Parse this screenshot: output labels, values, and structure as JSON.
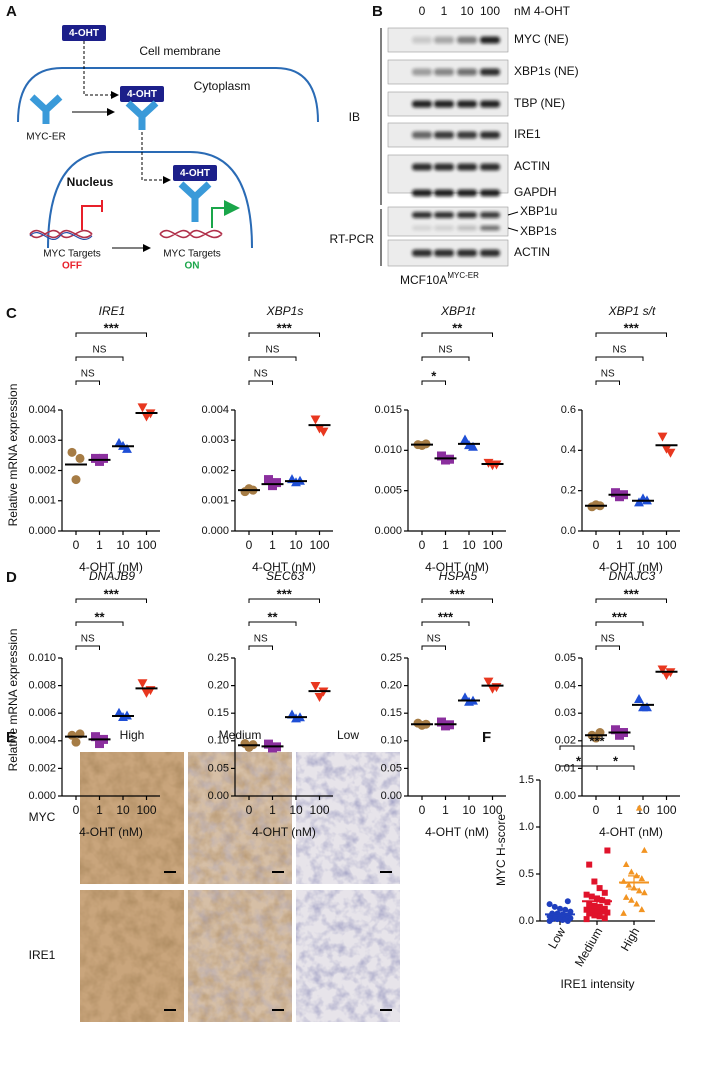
{
  "panel_labels": [
    "A",
    "B",
    "C",
    "D",
    "E",
    "F"
  ],
  "diagram": {
    "ligand": "4-OHT",
    "membrane": "Cell membrane",
    "cytoplasm": "Cytoplasm",
    "receptor": "MYC-ER",
    "nucleus": "Nucleus",
    "targets_off": "MYC Targets",
    "off": "OFF",
    "targets_on": "MYC Targets",
    "on": "ON"
  },
  "blot": {
    "lanes": [
      "0",
      "1",
      "10",
      "100"
    ],
    "unit": "nM 4-OHT",
    "ib_label": "IB",
    "ib_rows": [
      "MYC (NE)",
      "XBP1s (NE)",
      "TBP (NE)",
      "IRE1",
      "ACTIN",
      "GAPDH"
    ],
    "rtpcr_label": "RT-PCR",
    "rtpcr_rows": [
      "XBP1u",
      "XBP1s",
      "ACTIN"
    ],
    "cell_line": "MCF10A",
    "cell_line_sup": "MYC-ER"
  },
  "ihc": {
    "columns": [
      "High",
      "Medium",
      "Low"
    ],
    "rows": [
      "MYC",
      "IRE1"
    ]
  },
  "chart_data": [
    {
      "type": "dotplot",
      "title": "IRE1",
      "ylabel": "Relative mRNA expression",
      "xlabel": "4-OHT (nM)",
      "categories": [
        "0",
        "1",
        "10",
        "100"
      ],
      "values": [
        0.0022,
        0.00235,
        0.0028,
        0.0039
      ],
      "points": [
        [
          0.0026,
          0.0017,
          0.0024
        ],
        [
          0.0024,
          0.0023,
          0.0024
        ],
        [
          0.0029,
          0.0028,
          0.0027
        ],
        [
          0.0041,
          0.0038,
          0.0039
        ]
      ],
      "colors": [
        "#a67c45",
        "#8b2f9e",
        "#1f4fd6",
        "#e8371f"
      ],
      "markers": [
        "circle",
        "square",
        "triangle",
        "triangle-down"
      ],
      "mean_color": "#000000",
      "ylim": [
        0,
        0.004
      ],
      "yticks": [
        {
          "value": 0,
          "label": "0.000"
        },
        0.001,
        0.002,
        0.003,
        0.004
      ],
      "brackets": [
        {
          "from": 0,
          "to": 1,
          "label": "NS"
        },
        {
          "from": 0,
          "to": 2,
          "label": "NS"
        },
        {
          "from": 0,
          "to": 3,
          "label": "***"
        }
      ]
    },
    {
      "type": "dotplot",
      "title": "XBP1s",
      "xlabel": "4-OHT (nM)",
      "categories": [
        "0",
        "1",
        "10",
        "100"
      ],
      "values": [
        0.00135,
        0.00155,
        0.00165,
        0.0035
      ],
      "points": [
        [
          0.0013,
          0.0014,
          0.00135
        ],
        [
          0.0017,
          0.0015,
          0.0016
        ],
        [
          0.0017,
          0.0016,
          0.00165
        ],
        [
          0.0037,
          0.0034,
          0.0033
        ]
      ],
      "colors": [
        "#a67c45",
        "#8b2f9e",
        "#1f4fd6",
        "#e8371f"
      ],
      "markers": [
        "circle",
        "square",
        "triangle",
        "triangle-down"
      ],
      "mean_color": "#000000",
      "ylim": [
        0,
        0.004
      ],
      "yticks": [
        {
          "value": 0,
          "label": "0.000"
        },
        0.001,
        0.002,
        0.003,
        0.004
      ],
      "brackets": [
        {
          "from": 0,
          "to": 1,
          "label": "NS"
        },
        {
          "from": 0,
          "to": 2,
          "label": "NS"
        },
        {
          "from": 0,
          "to": 3,
          "label": "***"
        }
      ]
    },
    {
      "type": "dotplot",
      "title": "XBP1t",
      "xlabel": "4-OHT (nM)",
      "categories": [
        "0",
        "1",
        "10",
        "100"
      ],
      "values": [
        0.0107,
        0.009,
        0.0108,
        0.0083
      ],
      "points": [
        [
          0.0107,
          0.0106,
          0.0108
        ],
        [
          0.0093,
          0.0088,
          0.0089
        ],
        [
          0.0113,
          0.0106,
          0.0104
        ],
        [
          0.0085,
          0.0082,
          0.0083
        ]
      ],
      "colors": [
        "#a67c45",
        "#8b2f9e",
        "#1f4fd6",
        "#e8371f"
      ],
      "markers": [
        "circle",
        "square",
        "triangle",
        "triangle-down"
      ],
      "mean_color": "#000000",
      "ylim": [
        0,
        0.015
      ],
      "yticks": [
        {
          "value": 0,
          "label": "0.000"
        },
        0.005,
        {
          "value": 0.01,
          "label": "0.010"
        },
        0.015
      ],
      "brackets": [
        {
          "from": 0,
          "to": 1,
          "label": "*"
        },
        {
          "from": 0,
          "to": 2,
          "label": "NS"
        },
        {
          "from": 0,
          "to": 3,
          "label": "**"
        }
      ]
    },
    {
      "type": "dotplot",
      "title": "XBP1 s/t",
      "xlabel": "4-OHT (nM)",
      "categories": [
        "0",
        "1",
        "10",
        "100"
      ],
      "values": [
        0.125,
        0.18,
        0.15,
        0.425
      ],
      "points": [
        [
          0.12,
          0.13,
          0.125
        ],
        [
          0.19,
          0.17,
          0.18
        ],
        [
          0.14,
          0.16,
          0.15
        ],
        [
          0.47,
          0.41,
          0.39
        ]
      ],
      "colors": [
        "#a67c45",
        "#8b2f9e",
        "#1f4fd6",
        "#e8371f"
      ],
      "markers": [
        "circle",
        "square",
        "triangle",
        "triangle-down"
      ],
      "mean_color": "#000000",
      "ylim": [
        0,
        0.6
      ],
      "yticks": [
        {
          "value": 0,
          "label": "0.0"
        },
        0.2,
        0.4,
        0.6
      ],
      "brackets": [
        {
          "from": 0,
          "to": 1,
          "label": "NS"
        },
        {
          "from": 0,
          "to": 2,
          "label": "NS"
        },
        {
          "from": 0,
          "to": 3,
          "label": "***"
        }
      ]
    },
    {
      "type": "dotplot",
      "title": "DNAJB9",
      "ylabel": "Relative mRNA expression",
      "xlabel": "4-OHT (nM)",
      "categories": [
        "0",
        "1",
        "10",
        "100"
      ],
      "values": [
        0.0043,
        0.0041,
        0.0058,
        0.0078
      ],
      "points": [
        [
          0.0044,
          0.0039,
          0.0045
        ],
        [
          0.0043,
          0.0038,
          0.0041
        ],
        [
          0.006,
          0.0057,
          0.0058
        ],
        [
          0.0082,
          0.0075,
          0.0077
        ]
      ],
      "colors": [
        "#a67c45",
        "#8b2f9e",
        "#1f4fd6",
        "#e8371f"
      ],
      "markers": [
        "circle",
        "square",
        "triangle",
        "triangle-down"
      ],
      "mean_color": "#000000",
      "ylim": [
        0,
        0.01
      ],
      "yticks": [
        {
          "value": 0,
          "label": "0.000"
        },
        0.002,
        0.004,
        0.006,
        0.008,
        {
          "value": 0.01,
          "label": "0.010"
        }
      ],
      "brackets": [
        {
          "from": 0,
          "to": 1,
          "label": "NS"
        },
        {
          "from": 0,
          "to": 2,
          "label": "**"
        },
        {
          "from": 0,
          "to": 3,
          "label": "***"
        }
      ]
    },
    {
      "type": "dotplot",
      "title": "SEC63",
      "xlabel": "4-OHT (nM)",
      "categories": [
        "0",
        "1",
        "10",
        "100"
      ],
      "values": [
        0.092,
        0.09,
        0.143,
        0.19
      ],
      "points": [
        [
          0.095,
          0.088,
          0.093
        ],
        [
          0.094,
          0.087,
          0.089
        ],
        [
          0.147,
          0.14,
          0.142
        ],
        [
          0.2,
          0.18,
          0.19
        ]
      ],
      "colors": [
        "#a67c45",
        "#8b2f9e",
        "#1f4fd6",
        "#e8371f"
      ],
      "markers": [
        "circle",
        "square",
        "triangle",
        "triangle-down"
      ],
      "mean_color": "#000000",
      "ylim": [
        0,
        0.25
      ],
      "yticks": [
        {
          "value": 0,
          "label": "0.00"
        },
        0.05,
        {
          "value": 0.1,
          "label": "0.10"
        },
        0.15,
        {
          "value": 0.2,
          "label": "0.20"
        },
        0.25
      ],
      "brackets": [
        {
          "from": 0,
          "to": 1,
          "label": "NS"
        },
        {
          "from": 0,
          "to": 2,
          "label": "**"
        },
        {
          "from": 0,
          "to": 3,
          "label": "***"
        }
      ]
    },
    {
      "type": "dotplot",
      "title": "HSPA5",
      "xlabel": "4-OHT (nM)",
      "categories": [
        "0",
        "1",
        "10",
        "100"
      ],
      "values": [
        0.13,
        0.13,
        0.173,
        0.2
      ],
      "points": [
        [
          0.132,
          0.128,
          0.13
        ],
        [
          0.134,
          0.127,
          0.129
        ],
        [
          0.178,
          0.17,
          0.172
        ],
        [
          0.208,
          0.195,
          0.198
        ]
      ],
      "colors": [
        "#a67c45",
        "#8b2f9e",
        "#1f4fd6",
        "#e8371f"
      ],
      "markers": [
        "circle",
        "square",
        "triangle",
        "triangle-down"
      ],
      "mean_color": "#000000",
      "ylim": [
        0,
        0.25
      ],
      "yticks": [
        {
          "value": 0,
          "label": "0.00"
        },
        0.05,
        {
          "value": 0.1,
          "label": "0.10"
        },
        0.15,
        {
          "value": 0.2,
          "label": "0.20"
        },
        0.25
      ],
      "brackets": [
        {
          "from": 0,
          "to": 1,
          "label": "NS"
        },
        {
          "from": 0,
          "to": 2,
          "label": "***"
        },
        {
          "from": 0,
          "to": 3,
          "label": "***"
        }
      ]
    },
    {
      "type": "dotplot",
      "title": "DNAJC3",
      "xlabel": "4-OHT (nM)",
      "categories": [
        "0",
        "1",
        "10",
        "100"
      ],
      "values": [
        0.022,
        0.023,
        0.033,
        0.045
      ],
      "points": [
        [
          0.022,
          0.021,
          0.023
        ],
        [
          0.024,
          0.022,
          0.023
        ],
        [
          0.035,
          0.032,
          0.032
        ],
        [
          0.046,
          0.044,
          0.045
        ]
      ],
      "colors": [
        "#a67c45",
        "#8b2f9e",
        "#1f4fd6",
        "#e8371f"
      ],
      "markers": [
        "circle",
        "square",
        "triangle",
        "triangle-down"
      ],
      "mean_color": "#000000",
      "ylim": [
        0,
        0.05
      ],
      "yticks": [
        {
          "value": 0,
          "label": "0.00"
        },
        0.01,
        0.02,
        0.03,
        0.04,
        0.05
      ],
      "brackets": [
        {
          "from": 0,
          "to": 1,
          "label": "NS"
        },
        {
          "from": 0,
          "to": 2,
          "label": "***"
        },
        {
          "from": 0,
          "to": 3,
          "label": "***"
        }
      ]
    },
    {
      "type": "dotplot",
      "ylabel": "MYC H-score",
      "xlabel": "IRE1 intensity",
      "categories": [
        "Low",
        "Medium",
        "High"
      ],
      "values": [
        0.07,
        0.21,
        0.41
      ],
      "errors": [
        0.01,
        0.04,
        0.07
      ],
      "points": [
        [
          0,
          0,
          0.01,
          0.02,
          0.02,
          0.03,
          0.03,
          0.04,
          0.05,
          0.05,
          0.06,
          0.07,
          0.08,
          0.08,
          0.1,
          0.12,
          0.13,
          0.15,
          0.18,
          0.21
        ],
        [
          0.02,
          0.03,
          0.05,
          0.06,
          0.08,
          0.09,
          0.1,
          0.11,
          0.12,
          0.12,
          0.13,
          0.15,
          0.16,
          0.18,
          0.2,
          0.22,
          0.24,
          0.26,
          0.28,
          0.3,
          0.35,
          0.42,
          0.6,
          0.75
        ],
        [
          0.08,
          0.12,
          0.18,
          0.22,
          0.25,
          0.3,
          0.32,
          0.35,
          0.38,
          0.42,
          0.45,
          0.48,
          0.52,
          0.6,
          0.75,
          1.2
        ]
      ],
      "colors": [
        "#1f3fbf",
        "#e0132b",
        "#f29422"
      ],
      "markers": [
        "circle",
        "square",
        "triangle"
      ],
      "ylim": [
        0,
        1.5
      ],
      "yticks": [
        {
          "value": 0,
          "label": "0.0"
        },
        0.5,
        {
          "value": 1,
          "label": "1.0"
        },
        1.5
      ],
      "rotate_x_labels": true,
      "brackets": [
        {
          "from": 0,
          "to": 1,
          "label": "*"
        },
        {
          "from": 1,
          "to": 2,
          "label": "*"
        },
        {
          "from": 0,
          "to": 2,
          "label": "***"
        }
      ]
    }
  ]
}
